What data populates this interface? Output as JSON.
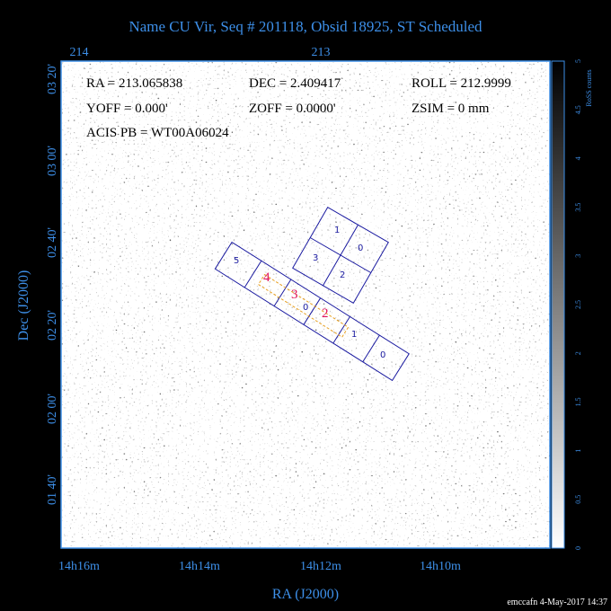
{
  "header": {
    "title": "Name CU Vir, Seq # 201118, Obsid 18925, ST Scheduled"
  },
  "top_axis": {
    "labels": [
      "214",
      "213"
    ]
  },
  "left_axis": {
    "title": "Dec (J2000)",
    "labels": [
      "03 20'",
      "03 00'",
      "02 40'",
      "02 20'",
      "02 00'",
      "01 40'"
    ]
  },
  "bottom_axis": {
    "title": "RA (J2000)",
    "labels": [
      "14h16m",
      "14h14m",
      "14h12m",
      "14h10m"
    ]
  },
  "colorbar": {
    "title": "RoSS counts",
    "labels": [
      "0",
      "0.5",
      "1",
      "1.5",
      "2",
      "2.5",
      "3",
      "3.5",
      "4",
      "4.5",
      "5"
    ]
  },
  "info": {
    "rows": [
      [
        "RA = 213.065838",
        "DEC = 2.409417",
        "ROLL = 212.9999"
      ],
      [
        "YOFF =   0.000'",
        "ZOFF =  0.0000'",
        "ZSIM = 0 mm"
      ],
      [
        "ACIS PB = WT00A06024"
      ]
    ]
  },
  "chips": {
    "acis_i": [
      "1",
      "0",
      "3",
      "2"
    ],
    "acis_s": [
      "5",
      "4",
      "3",
      "0",
      "2",
      "1",
      "0"
    ]
  },
  "footer": {
    "stamp": "emccafn  4-May-2017 14:37"
  }
}
